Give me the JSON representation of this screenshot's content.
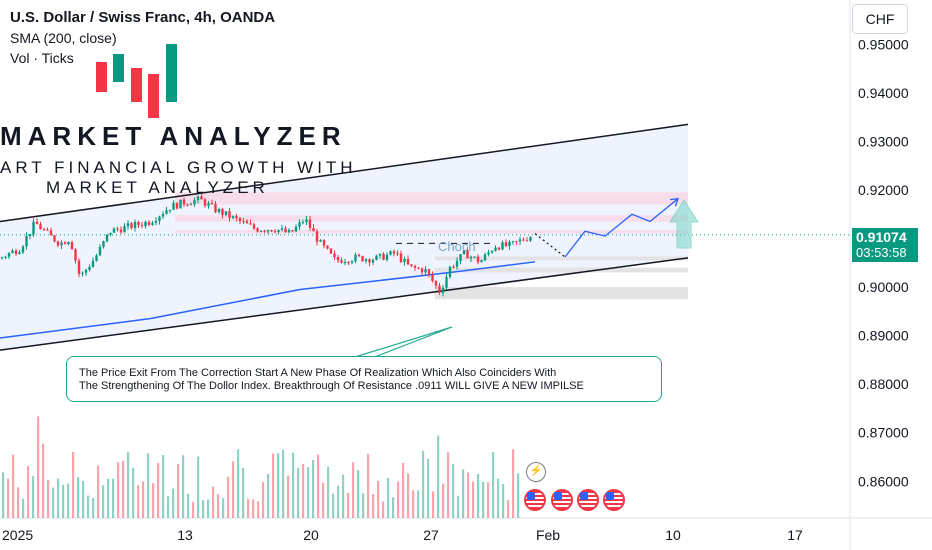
{
  "header": {
    "title": "U.S. Dollar / Swiss Franc, 4h, OANDA",
    "indicator_sma": "SMA (200, close)",
    "indicator_vol": "Vol · Ticks"
  },
  "price_scale": {
    "currency": "CHF",
    "current_price": "0.91074",
    "countdown": "03:53:58"
  },
  "logo": {
    "title": "MARKET ANALYZER",
    "subtitle_line1": "ART FINANCIAL GROWTH WITH",
    "subtitle_line2": "MARKET ANALYZER"
  },
  "annotations": {
    "choch_label": "Choch",
    "note_line1": "The Price Exit From The Correction Start A New Phase Of Realization Which Also Coinciders With",
    "note_line2": "The Strengthening Of The Dollor Index. Breakthrough Of Resistance .0911 WILL GIVE A NEW IMPILSE"
  },
  "icons": [
    "lightning-icon",
    "us-flag-icon",
    "us-flag-icon",
    "us-flag-icon",
    "us-flag-icon"
  ],
  "colors": {
    "up": "#089981",
    "down": "#f23645",
    "sma": "#2962ff",
    "channel_fill": "#e9effd",
    "resistance_zone": "#f7d9e7",
    "support_zone": "#e3e3e3",
    "projection": "#2962ff"
  },
  "chart_data": {
    "type": "candlestick",
    "symbol": "USDCHF",
    "timeframe": "4h",
    "y_axis_ticks": [
      "0.95000",
      "0.94000",
      "0.93000",
      "0.92000",
      "0.90000",
      "0.89000",
      "0.88000",
      "0.87000",
      "0.86000"
    ],
    "ylim": [
      0.8545,
      0.9585
    ],
    "x_axis_ticks": [
      "2025",
      "13",
      "20",
      "27",
      "Feb",
      "10",
      "17"
    ],
    "last_price": 0.91074,
    "price_path": [
      [
        0,
        0.906
      ],
      [
        20,
        0.908
      ],
      [
        35,
        0.9132
      ],
      [
        50,
        0.9105
      ],
      [
        60,
        0.909
      ],
      [
        70,
        0.91
      ],
      [
        80,
        0.902
      ],
      [
        95,
        0.906
      ],
      [
        110,
        0.9115
      ],
      [
        130,
        0.9125
      ],
      [
        150,
        0.9135
      ],
      [
        170,
        0.9165
      ],
      [
        185,
        0.9175
      ],
      [
        200,
        0.918
      ],
      [
        215,
        0.916
      ],
      [
        235,
        0.914
      ],
      [
        255,
        0.912
      ],
      [
        275,
        0.912
      ],
      [
        290,
        0.911
      ],
      [
        305,
        0.914
      ],
      [
        320,
        0.909
      ],
      [
        335,
        0.9055
      ],
      [
        355,
        0.906
      ],
      [
        375,
        0.9058
      ],
      [
        395,
        0.907
      ],
      [
        410,
        0.904
      ],
      [
        425,
        0.9035
      ],
      [
        440,
        0.899
      ],
      [
        450,
        0.904
      ],
      [
        465,
        0.907
      ],
      [
        480,
        0.9052
      ],
      [
        495,
        0.9085
      ],
      [
        510,
        0.9085
      ],
      [
        525,
        0.91
      ],
      [
        535,
        0.911
      ]
    ],
    "sma_200": [
      [
        0,
        0.8895
      ],
      [
        150,
        0.8935
      ],
      [
        300,
        0.8995
      ],
      [
        450,
        0.903
      ],
      [
        535,
        0.9052
      ]
    ],
    "channel_upper": [
      [
        0,
        0.9135
      ],
      [
        688,
        0.9335
      ]
    ],
    "channel_lower": [
      [
        0,
        0.887
      ],
      [
        688,
        0.906
      ]
    ],
    "resistance_zones": [
      [
        0.917,
        0.9195
      ],
      [
        0.9135,
        0.9148
      ],
      [
        0.911,
        0.9117
      ]
    ],
    "support_zones": [
      [
        0.9055,
        0.9063
      ],
      [
        0.903,
        0.904
      ],
      [
        0.8975,
        0.9
      ]
    ],
    "projection_path": [
      [
        535,
        0.911
      ],
      [
        565,
        0.9062
      ],
      [
        585,
        0.9115
      ],
      [
        605,
        0.9105
      ],
      [
        632,
        0.915
      ],
      [
        650,
        0.9135
      ],
      [
        678,
        0.9182
      ]
    ],
    "volume_max_ticks": 100
  }
}
